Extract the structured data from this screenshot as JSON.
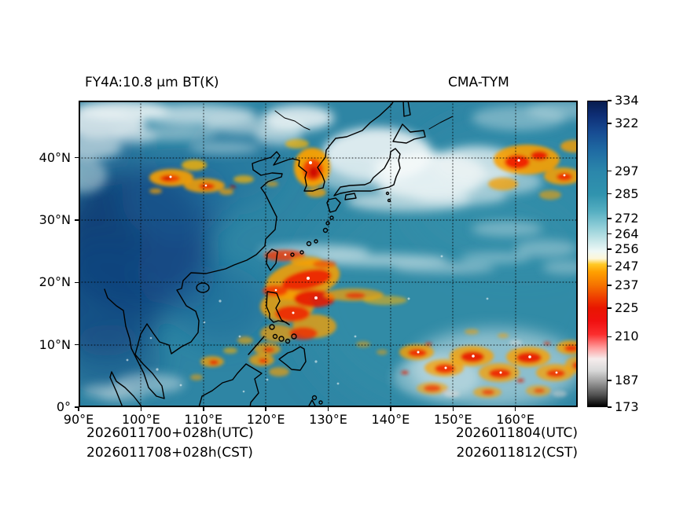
{
  "header": {
    "title_left": "FY4A:10.8 μm BT(K)",
    "title_right": "CMA-TYM"
  },
  "footer": {
    "left_line1": "2026011700+028h(UTC)",
    "left_line2": "2026011708+028h(CST)",
    "right_line1": "2026011804(UTC)",
    "right_line2": "2026011812(CST)"
  },
  "chart_data": {
    "type": "heatmap",
    "title": "FY4A:10.8 μm BT(K)",
    "model": "CMA-TYM",
    "unit": "K",
    "x_range_deg_east": [
      90,
      170
    ],
    "y_range_deg_north": [
      0,
      49
    ],
    "grid": "dotted",
    "x_ticks": [
      {
        "deg": 90,
        "label": "90°E"
      },
      {
        "deg": 100,
        "label": "100°E"
      },
      {
        "deg": 110,
        "label": "110°E"
      },
      {
        "deg": 120,
        "label": "120°E"
      },
      {
        "deg": 130,
        "label": "130°E"
      },
      {
        "deg": 140,
        "label": "140°E"
      },
      {
        "deg": 150,
        "label": "150°E"
      },
      {
        "deg": 160,
        "label": "160°E"
      }
    ],
    "y_ticks": [
      {
        "lat": 0,
        "label": "0°"
      },
      {
        "lat": 10,
        "label": "10°N"
      },
      {
        "lat": 20,
        "label": "20°N"
      },
      {
        "lat": 30,
        "label": "30°N"
      },
      {
        "lat": 40,
        "label": "40°N"
      }
    ],
    "colorbar": {
      "unit": "K",
      "min": 173,
      "max": 334,
      "ticks": [
        334,
        322,
        297,
        285,
        272,
        264,
        256,
        247,
        237,
        225,
        210,
        187,
        173
      ],
      "stops": [
        {
          "v": 334,
          "c": "#071c4e"
        },
        {
          "v": 327,
          "c": "#0e2d74"
        },
        {
          "v": 318,
          "c": "#174b92"
        },
        {
          "v": 308,
          "c": "#1f6ba3"
        },
        {
          "v": 297,
          "c": "#2b87ab"
        },
        {
          "v": 285,
          "c": "#3093ae"
        },
        {
          "v": 276,
          "c": "#55aec1"
        },
        {
          "v": 268,
          "c": "#8fcdd7"
        },
        {
          "v": 261,
          "c": "#c2e5e7"
        },
        {
          "v": 255,
          "c": "#eef8f6"
        },
        {
          "v": 251,
          "c": "#fdf7d8"
        },
        {
          "v": 248,
          "c": "#ffc926"
        },
        {
          "v": 244,
          "c": "#ffa000"
        },
        {
          "v": 237,
          "c": "#f57300"
        },
        {
          "v": 230,
          "c": "#ee3a00"
        },
        {
          "v": 225,
          "c": "#e81600"
        },
        {
          "v": 218,
          "c": "#f01010"
        },
        {
          "v": 211,
          "c": "#fb2e2e"
        },
        {
          "v": 204,
          "c": "#ff9c9c"
        },
        {
          "v": 198,
          "c": "#f6ecec"
        },
        {
          "v": 192,
          "c": "#d9d9d9"
        },
        {
          "v": 187,
          "c": "#a8a8a8"
        },
        {
          "v": 179,
          "c": "#515151"
        },
        {
          "v": 173,
          "c": "#000000"
        }
      ]
    },
    "times": {
      "init_utc": "2026011700+028h(UTC)",
      "init_cst": "2026011708+028h(CST)",
      "valid_utc": "2026011804(UTC)",
      "valid_cst": "2026011812(CST)"
    }
  }
}
